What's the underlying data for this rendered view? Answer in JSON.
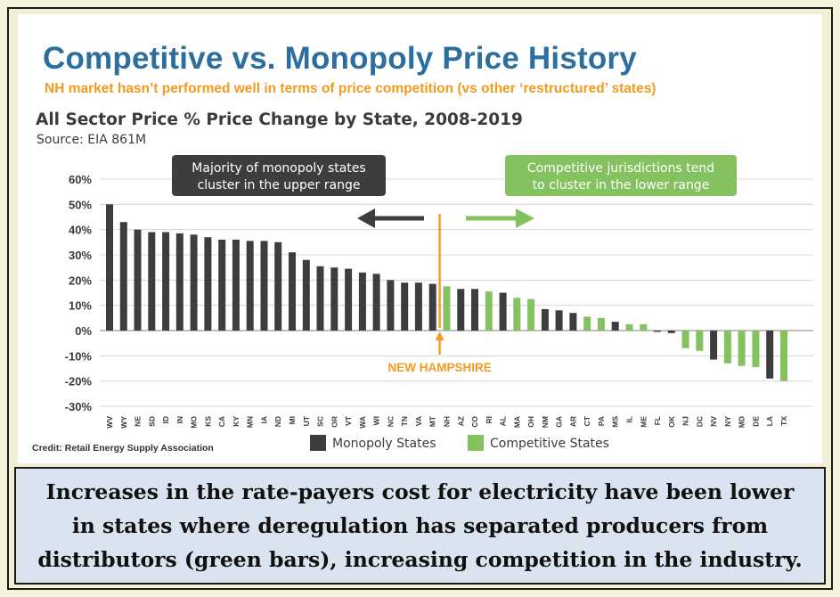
{
  "slide": {
    "title": "Competitive vs. Monopoly Price History",
    "subtitle": "NH market hasn’t performed well in terms of price competition (vs other ‘restructured’ states)",
    "credit": "Credit: Retail Energy Supply Association"
  },
  "chart_data": {
    "type": "bar",
    "title": "All Sector Price % Price Change by State, 2008-2019",
    "source": "Source: EIA 861M",
    "xlabel": "",
    "ylabel": "",
    "ylim": [
      -30,
      60
    ],
    "y_ticks": [
      "60%",
      "50%",
      "40%",
      "30%",
      "20%",
      "10%",
      "0%",
      "-10%",
      "-20%",
      "-30%"
    ],
    "grid": true,
    "legend_position": "bottom",
    "colors": {
      "monopoly": "#3d3d3d",
      "competitive": "#84c25f",
      "highlight": "#f59a1e"
    },
    "series": [
      {
        "name": "Monopoly States",
        "key": "monopoly"
      },
      {
        "name": "Competitive States",
        "key": "competitive"
      }
    ],
    "categories": [
      "WV",
      "WY",
      "NE",
      "SD",
      "ID",
      "IN",
      "MO",
      "KS",
      "CA",
      "KY",
      "MN",
      "IA",
      "ND",
      "MI",
      "UT",
      "SC",
      "OR",
      "VT",
      "WA",
      "WI",
      "NC",
      "TN",
      "VA",
      "MT",
      "NH",
      "AZ",
      "CO",
      "RI",
      "AL",
      "MA",
      "OH",
      "NM",
      "GA",
      "AR",
      "CT",
      "PA",
      "MS",
      "IL",
      "ME",
      "FL",
      "OK",
      "NJ",
      "DC",
      "NV",
      "NY",
      "MD",
      "DE",
      "LA",
      "TX"
    ],
    "values": [
      50,
      43,
      40,
      39,
      39,
      38.5,
      38,
      37,
      36,
      36,
      35.5,
      35.5,
      35,
      31,
      28,
      25.5,
      25,
      24.5,
      23,
      22.5,
      20,
      19,
      19,
      18.5,
      17.5,
      16.5,
      16.5,
      15.5,
      15,
      13,
      12.5,
      8.5,
      8,
      7,
      5.5,
      5,
      3.5,
      2.5,
      2.5,
      -0.5,
      -1,
      -7,
      -8,
      -11.5,
      -13,
      -14,
      -14.5,
      -19,
      -20
    ],
    "group": [
      "monopoly",
      "monopoly",
      "monopoly",
      "monopoly",
      "monopoly",
      "monopoly",
      "monopoly",
      "monopoly",
      "monopoly",
      "monopoly",
      "monopoly",
      "monopoly",
      "monopoly",
      "monopoly",
      "monopoly",
      "monopoly",
      "monopoly",
      "monopoly",
      "monopoly",
      "monopoly",
      "monopoly",
      "monopoly",
      "monopoly",
      "monopoly",
      "competitive",
      "monopoly",
      "monopoly",
      "competitive",
      "monopoly",
      "competitive",
      "competitive",
      "monopoly",
      "monopoly",
      "monopoly",
      "competitive",
      "competitive",
      "monopoly",
      "competitive",
      "competitive",
      "monopoly",
      "monopoly",
      "competitive",
      "competitive",
      "monopoly",
      "competitive",
      "competitive",
      "competitive",
      "monopoly",
      "competitive"
    ],
    "annotations": {
      "monopoly_note": [
        "Majority of monopoly states",
        "cluster in the upper range"
      ],
      "competitive_note": [
        "Competitive jurisdictions tend",
        "to cluster in the lower range"
      ],
      "highlight_label": "NEW HAMPSHIRE",
      "highlight_state": "NH"
    }
  },
  "caption": "Increases in the rate-payers cost for electricity have been lower in states where deregulation has separated producers from distributors (green bars), increasing competition in the industry."
}
